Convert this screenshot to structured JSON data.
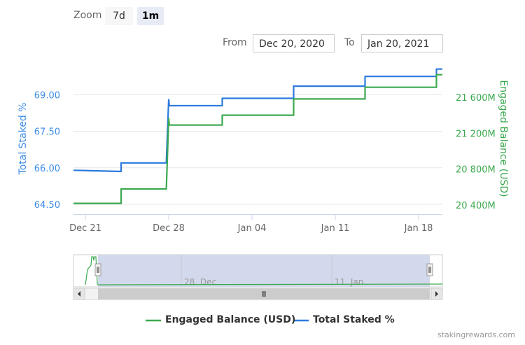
{
  "zoom": {
    "label": "Zoom",
    "buttons": [
      "7d",
      "1m"
    ],
    "active": "1m"
  },
  "range": {
    "from_label": "From",
    "from_value": "Dec 20, 2020",
    "to_label": "To",
    "to_value": "Jan 20, 2021"
  },
  "credit": "stakingrewards.com",
  "colors": {
    "staked": "#2b7ade",
    "balance": "#3ba94e",
    "left_axis_text": "#3d8de8",
    "right_axis_text": "#3ba94e"
  },
  "chart_data": {
    "type": "line",
    "x_ticks": [
      "Dec 21",
      "Dec 28",
      "Jan 04",
      "Jan 11",
      "Jan 18"
    ],
    "left_axis": {
      "label": "Total Staked %",
      "ticks": [
        "64.50",
        "66.00",
        "67.50",
        "69.00"
      ],
      "range": [
        64.1,
        70.3
      ]
    },
    "right_axis": {
      "label": "Engaged Balance (USD)",
      "ticks": [
        "20 400M",
        "20 800M",
        "21 200M",
        "21 600M"
      ],
      "range": [
        20300,
        21980
      ]
    },
    "series": [
      {
        "name": "Total Staked %",
        "axis": "left",
        "points": [
          [
            "2020-12-20",
            65.9
          ],
          [
            "2020-12-24",
            65.85
          ],
          [
            "2020-12-24",
            66.2
          ],
          [
            "2020-12-27.8",
            66.2
          ],
          [
            "2020-12-28",
            68.8
          ],
          [
            "2020-12-28.05",
            68.55
          ],
          [
            "2021-01-01.5",
            68.55
          ],
          [
            "2021-01-01.5",
            68.85
          ],
          [
            "2021-01-07.5",
            68.85
          ],
          [
            "2021-01-07.5",
            69.35
          ],
          [
            "2021-01-13.5",
            69.35
          ],
          [
            "2021-01-13.5",
            69.75
          ],
          [
            "2021-01-19.5",
            69.75
          ],
          [
            "2021-01-19.5",
            70.05
          ],
          [
            "2021-01-20",
            70.05
          ]
        ]
      },
      {
        "name": "Engaged Balance (USD)",
        "axis": "right",
        "points": [
          [
            "2020-12-20",
            20420
          ],
          [
            "2020-12-24",
            20420
          ],
          [
            "2020-12-24",
            20580
          ],
          [
            "2020-12-27.8",
            20580
          ],
          [
            "2020-12-28",
            21360
          ],
          [
            "2020-12-28.05",
            21290
          ],
          [
            "2021-01-01.5",
            21290
          ],
          [
            "2021-01-01.5",
            21400
          ],
          [
            "2021-01-07.5",
            21400
          ],
          [
            "2021-01-07.5",
            21580
          ],
          [
            "2021-01-13.5",
            21580
          ],
          [
            "2021-01-13.5",
            21710
          ],
          [
            "2021-01-19.5",
            21710
          ],
          [
            "2021-01-19.5",
            21850
          ],
          [
            "2021-01-20",
            21850
          ]
        ]
      }
    ],
    "navigator": {
      "labels": [
        "28. Dec",
        "11. Jan"
      ]
    },
    "grid": true,
    "legend_position": "bottom-center"
  }
}
